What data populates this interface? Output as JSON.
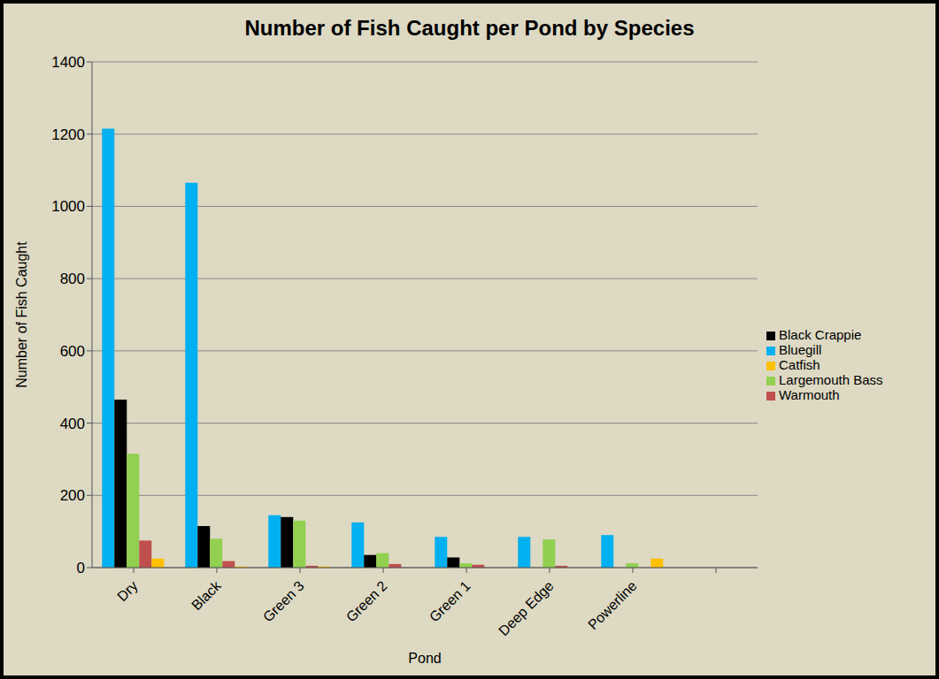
{
  "chart_data": {
    "type": "bar",
    "title": "Number of Fish Caught per Pond by Species",
    "x_label": "Pond",
    "y_label": "Number of Fish Caught",
    "categories": [
      "Dry",
      "Black",
      "Green 3",
      "Green 2",
      "Green 1",
      "Deep Edge",
      "Powerline",
      null
    ],
    "series": [
      {
        "name": "Bluegill",
        "color": "#00b0f0",
        "values": [
          1215,
          1065,
          145,
          125,
          85,
          85,
          90,
          null
        ]
      },
      {
        "name": "Black Crappie",
        "color": "#000000",
        "values": [
          465,
          115,
          140,
          35,
          28,
          0,
          0,
          null
        ]
      },
      {
        "name": "Largemouth Bass",
        "color": "#92d050",
        "values": [
          315,
          80,
          130,
          40,
          12,
          78,
          12,
          null
        ]
      },
      {
        "name": "Warmouth",
        "color": "#c0504d",
        "values": [
          75,
          18,
          5,
          10,
          8,
          5,
          0,
          null
        ]
      },
      {
        "name": "Catfish",
        "color": "#ffc000",
        "values": [
          25,
          3,
          3,
          0,
          0,
          0,
          25,
          null
        ]
      }
    ],
    "ylim": [
      0,
      1400
    ],
    "yticks": [
      0,
      200,
      400,
      600,
      800,
      1000,
      1200,
      1400
    ],
    "grid": true,
    "legend": "right"
  }
}
